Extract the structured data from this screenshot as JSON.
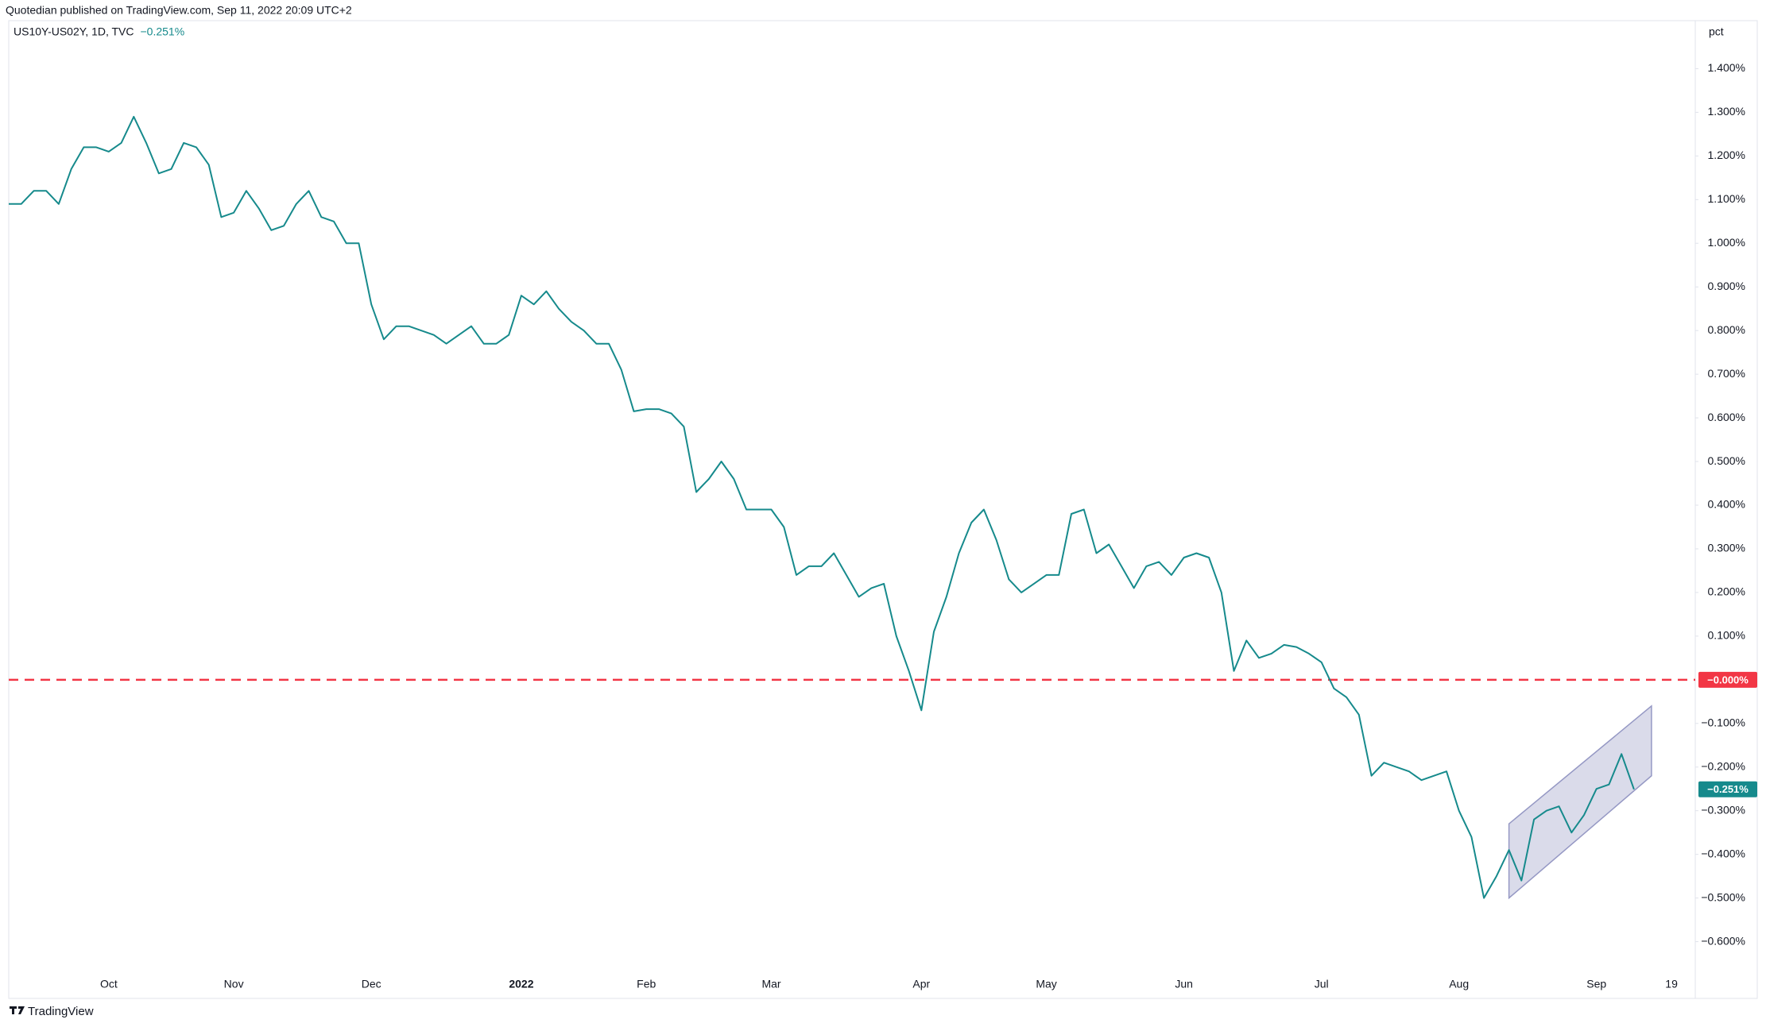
{
  "chart_data": {
    "type": "line",
    "title": "Quotedian published on TradingView.com, Sep 11, 2022 20:09 UTC+2",
    "subtitle": "US10Y-US02Y, 1D, TVC",
    "y_unit_label": "pct",
    "brand": "TradingView",
    "categories": [
      null,
      null,
      null,
      null,
      null,
      null,
      null,
      null,
      "Oct",
      null,
      null,
      null,
      null,
      null,
      null,
      null,
      null,
      null,
      "Nov",
      null,
      null,
      null,
      null,
      null,
      null,
      null,
      null,
      null,
      null,
      "Dec",
      null,
      null,
      null,
      null,
      null,
      null,
      null,
      null,
      null,
      null,
      null,
      "2022",
      null,
      null,
      null,
      null,
      null,
      null,
      null,
      null,
      null,
      "Feb",
      null,
      null,
      null,
      null,
      null,
      null,
      null,
      null,
      null,
      "Mar",
      null,
      null,
      null,
      null,
      null,
      null,
      null,
      null,
      null,
      null,
      null,
      "Apr",
      null,
      null,
      null,
      null,
      null,
      null,
      null,
      null,
      null,
      "May",
      null,
      null,
      null,
      null,
      null,
      null,
      null,
      null,
      null,
      null,
      "Jun",
      null,
      null,
      null,
      null,
      null,
      null,
      null,
      null,
      null,
      null,
      "Jul",
      null,
      null,
      null,
      null,
      null,
      null,
      null,
      null,
      null,
      null,
      "Aug",
      null,
      null,
      null,
      null,
      null,
      null,
      null,
      null,
      null,
      null,
      "Sep",
      null,
      null,
      null,
      null,
      null,
      "19"
    ],
    "series": [
      {
        "name": "US10Y-US02Y",
        "color": "#168a8c",
        "last_label": "−0.251%",
        "values": [
          1.09,
          1.09,
          1.12,
          1.12,
          1.09,
          1.17,
          1.22,
          1.22,
          1.21,
          1.23,
          1.29,
          1.23,
          1.16,
          1.17,
          1.23,
          1.22,
          1.18,
          1.06,
          1.07,
          1.12,
          1.08,
          1.03,
          1.04,
          1.09,
          1.12,
          1.06,
          1.05,
          1.0,
          1.0,
          0.86,
          0.78,
          0.81,
          0.81,
          0.8,
          0.79,
          0.77,
          0.79,
          0.81,
          0.77,
          0.77,
          0.79,
          0.88,
          0.86,
          0.89,
          0.85,
          0.82,
          0.8,
          0.77,
          0.77,
          0.71,
          0.615,
          0.62,
          0.62,
          0.61,
          0.58,
          0.43,
          0.46,
          0.5,
          0.46,
          0.39,
          0.39,
          0.39,
          0.35,
          0.24,
          0.26,
          0.26,
          0.29,
          0.24,
          0.19,
          0.21,
          0.22,
          0.1,
          0.02,
          -0.07,
          0.11,
          0.19,
          0.29,
          0.36,
          0.39,
          0.32,
          0.23,
          0.2,
          0.22,
          0.24,
          0.24,
          0.38,
          0.39,
          0.29,
          0.31,
          0.26,
          0.21,
          0.26,
          0.27,
          0.24,
          0.28,
          0.29,
          0.28,
          0.2,
          0.02,
          0.09,
          0.05,
          0.06,
          0.08,
          0.075,
          0.06,
          0.04,
          -0.02,
          -0.04,
          -0.08,
          -0.22,
          -0.19,
          -0.2,
          -0.21,
          -0.23,
          -0.22,
          -0.21,
          -0.3,
          -0.36,
          -0.5,
          -0.45,
          -0.39,
          -0.46,
          -0.32,
          -0.3,
          -0.29,
          -0.35,
          -0.31,
          -0.25,
          -0.24,
          -0.17,
          -0.251,
          null,
          null,
          null
        ]
      }
    ],
    "ref_line": {
      "value": 0,
      "label": "−0.000%",
      "color": "#f23645"
    },
    "channel": {
      "x": [
        120,
        131.4
      ],
      "upper": [
        -0.33,
        -0.06
      ],
      "lower": [
        -0.5,
        -0.22
      ],
      "color": "#9598c4"
    },
    "ylim": [
      -0.73,
      1.51
    ],
    "yticks": [
      {
        "value": 1.4,
        "label": "1.400%"
      },
      {
        "value": 1.3,
        "label": "1.300%"
      },
      {
        "value": 1.2,
        "label": "1.200%"
      },
      {
        "value": 1.1,
        "label": "1.100%"
      },
      {
        "value": 1.0,
        "label": "1.000%"
      },
      {
        "value": 0.9,
        "label": "0.900%"
      },
      {
        "value": 0.8,
        "label": "0.800%"
      },
      {
        "value": 0.7,
        "label": "0.700%"
      },
      {
        "value": 0.6,
        "label": "0.600%"
      },
      {
        "value": 0.5,
        "label": "0.500%"
      },
      {
        "value": 0.4,
        "label": "0.400%"
      },
      {
        "value": 0.3,
        "label": "0.300%"
      },
      {
        "value": 0.2,
        "label": "0.200%"
      },
      {
        "value": 0.1,
        "label": "0.100%"
      },
      {
        "value": -0.1,
        "label": "−0.100%"
      },
      {
        "value": -0.2,
        "label": "−0.200%"
      },
      {
        "value": -0.3,
        "label": "−0.300%"
      },
      {
        "value": -0.4,
        "label": "−0.400%"
      },
      {
        "value": -0.5,
        "label": "−0.500%"
      },
      {
        "value": -0.6,
        "label": "−0.600%"
      }
    ],
    "grid": false
  }
}
